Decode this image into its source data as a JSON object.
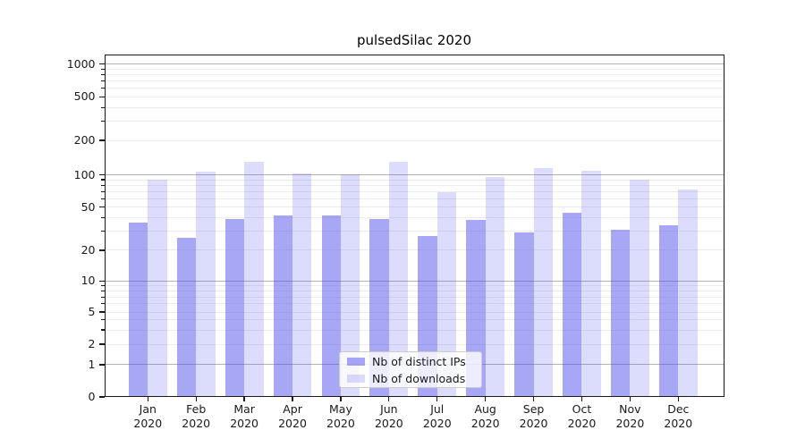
{
  "title": "pulsedSilac 2020",
  "chart_data": {
    "type": "bar",
    "categories": [
      "Jan",
      "Feb",
      "Mar",
      "Apr",
      "May",
      "Jun",
      "Jul",
      "Aug",
      "Sep",
      "Oct",
      "Nov",
      "Dec"
    ],
    "x_year_label": "2020",
    "series": [
      {
        "name": "Nb of distinct IPs",
        "values": [
          36,
          26,
          39,
          42,
          42,
          39,
          27,
          38,
          29,
          44,
          31,
          34
        ],
        "color": "rgba(80,80,238,0.5)"
      },
      {
        "name": "Nb of downloads",
        "values": [
          90,
          107,
          131,
          102,
          101,
          131,
          69,
          96,
          114,
          109,
          90,
          73
        ],
        "color": "rgba(80,80,238,0.2)"
      }
    ],
    "title": "pulsedSilac 2020",
    "xlabel": "",
    "ylabel": "",
    "yticks": [
      0,
      1,
      2,
      5,
      10,
      20,
      50,
      100,
      200,
      500,
      1000
    ],
    "ylim": [
      0,
      1200
    ],
    "yscale": "symlog-like (linear 0-1, compressed log 1-10, log above 10)",
    "grid": "horizontal, major lines at powers of 10 darker, minor lines lighter",
    "legend_position": "lower center inside plot"
  },
  "colors": {
    "bar_base": "#5050ee",
    "bar_dark_fill": "rgba(80,80,238,0.5)",
    "bar_light_fill": "rgba(80,80,238,0.2)",
    "grid_major": "#b3b3b3",
    "grid_minor": "#ececec",
    "axis": "#1a1a1a",
    "background": "#ffffff",
    "legend_border": "#cccccc"
  }
}
